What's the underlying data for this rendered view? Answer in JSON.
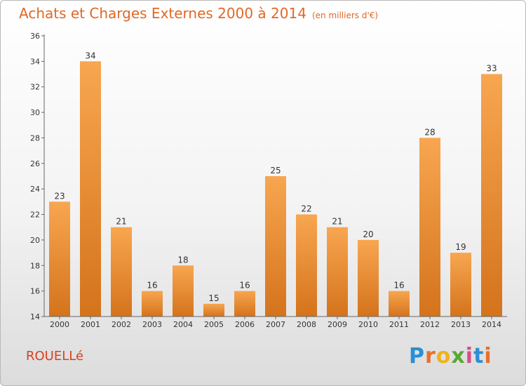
{
  "header": {
    "title": "Achats et Charges Externes 2000 à 2014",
    "subtitle": "(en milliers d'€)"
  },
  "footer": {
    "town": "ROUELLé",
    "logo_text": "Proxiti"
  },
  "colors": {
    "bar_top": "#f8a650",
    "bar_bottom": "#d4731c",
    "title": "#e06826",
    "town": "#d8401f"
  },
  "chart_data": {
    "type": "bar",
    "title": "Achats et Charges Externes 2000 à 2014",
    "subtitle": "(en milliers d'€)",
    "categories": [
      "2000",
      "2001",
      "2002",
      "2003",
      "2004",
      "2005",
      "2006",
      "2007",
      "2008",
      "2009",
      "2010",
      "2011",
      "2012",
      "2013",
      "2014"
    ],
    "values": [
      23,
      34,
      21,
      16,
      18,
      15,
      16,
      25,
      22,
      21,
      20,
      16,
      28,
      19,
      33
    ],
    "ylim": [
      14,
      36
    ],
    "yticks": [
      14,
      16,
      18,
      20,
      22,
      24,
      26,
      28,
      30,
      32,
      34,
      36
    ],
    "grid": false,
    "legend": "none"
  }
}
